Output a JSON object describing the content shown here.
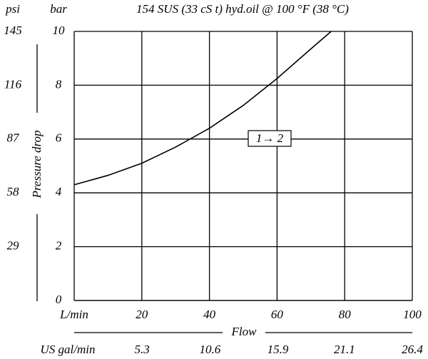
{
  "chart_data": {
    "type": "line",
    "title": "154 SUS (33 cS  t) hyd.oil @ 100 °F (38 °C)",
    "y_unit": "bar",
    "y2_unit": "psi",
    "x_unit": "L/min",
    "x2_unit": "US gal/min",
    "ylabel": "Pressure drop",
    "xlabel": "Flow",
    "annotation": "1→ 2",
    "x": [
      0,
      10,
      20,
      30,
      40,
      50,
      60,
      70,
      76
    ],
    "series": [
      {
        "color": "#000000",
        "values": [
          4.3,
          4.65,
          5.1,
          5.7,
          6.4,
          7.25,
          8.25,
          9.35,
          10
        ]
      }
    ],
    "xlim": [
      0,
      100
    ],
    "xticks": [
      20,
      40,
      60,
      80,
      100
    ],
    "ylim": [
      0,
      10
    ],
    "yticks": [
      0,
      2,
      4,
      6,
      8,
      10
    ],
    "y2lim": [
      0,
      145
    ],
    "y2ticks": [
      29,
      58,
      87,
      116,
      145
    ],
    "x2lim": [
      0,
      26.4
    ],
    "x2ticks": [
      5.3,
      10.6,
      15.9,
      21.1,
      26.4
    ],
    "grid": true
  }
}
